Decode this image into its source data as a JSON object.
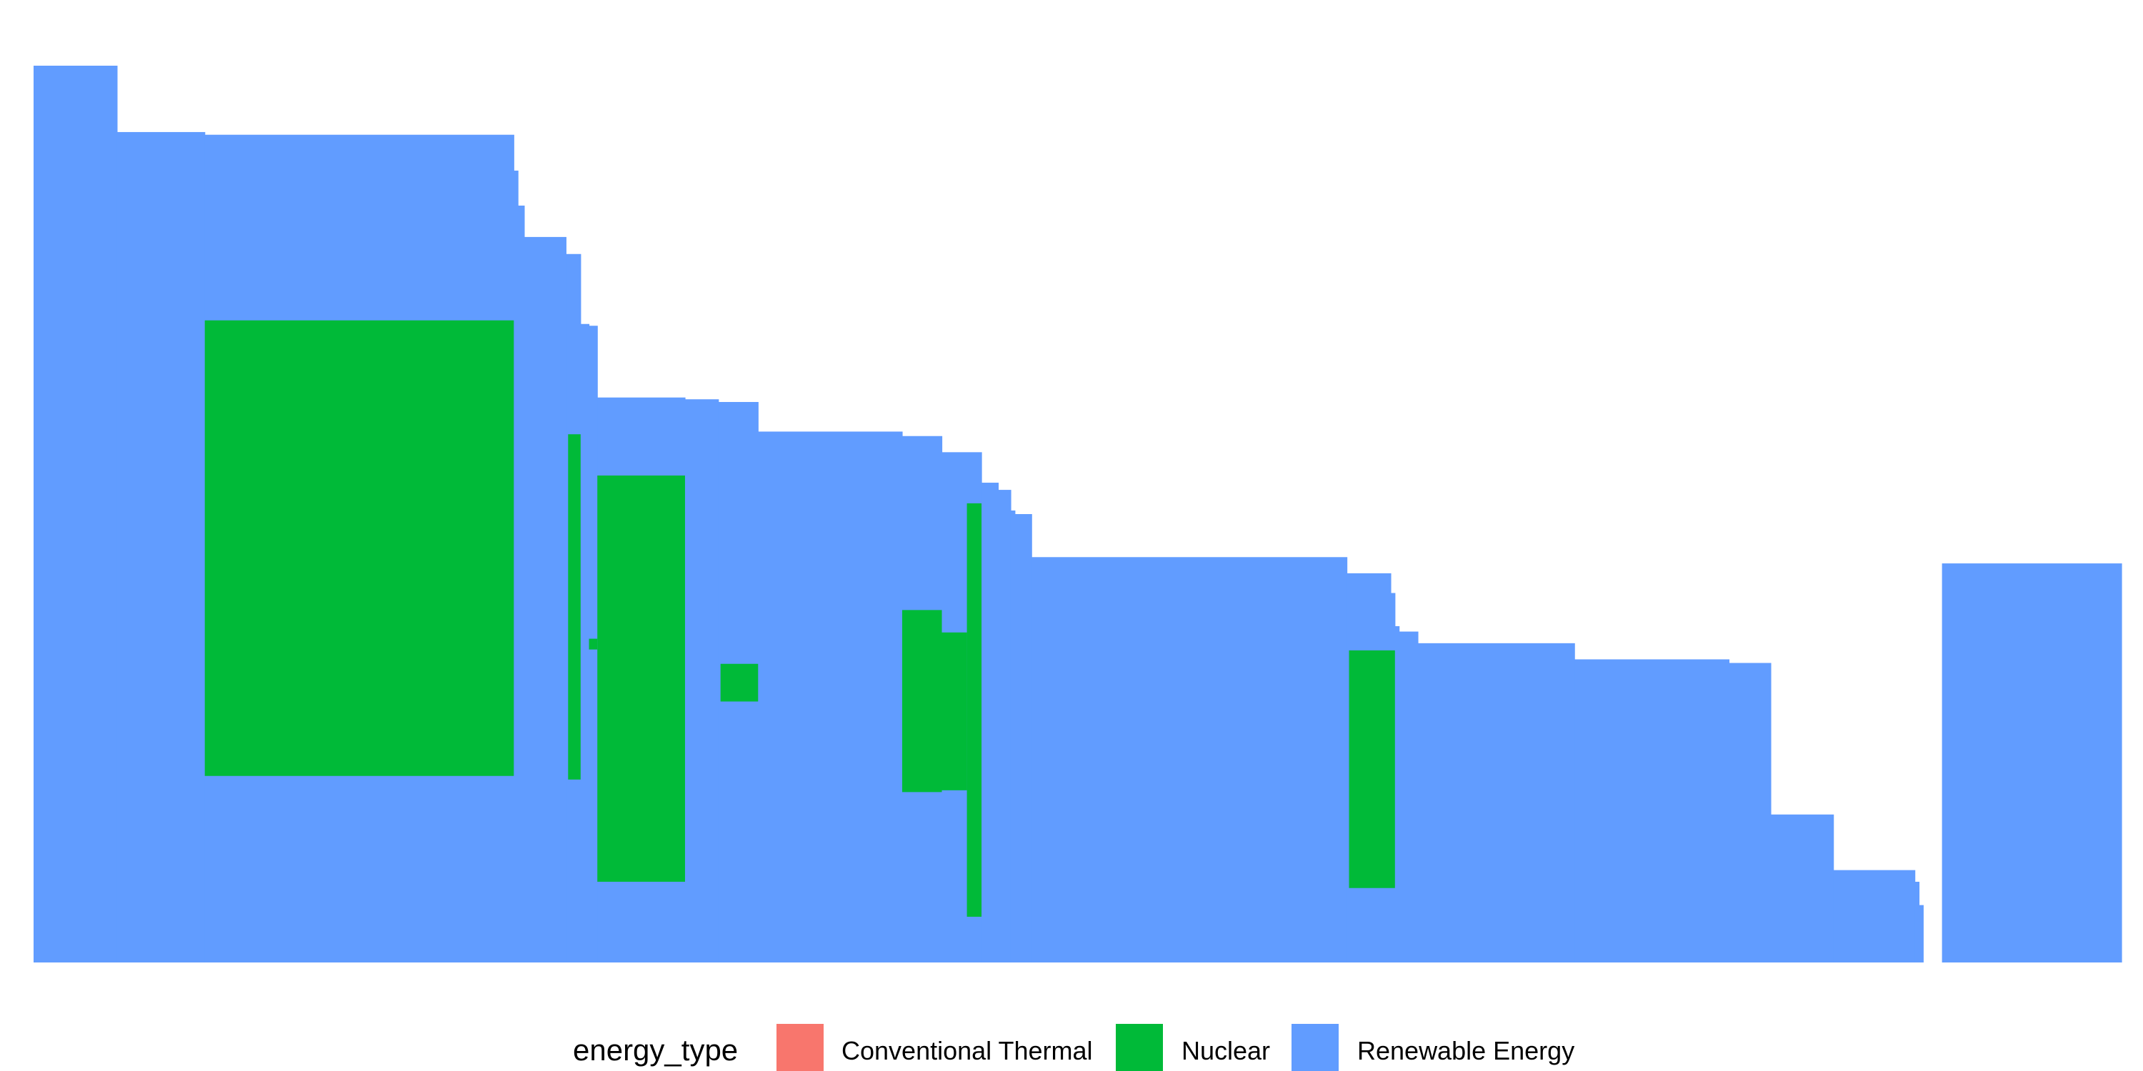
{
  "chart_data": {
    "type": "area",
    "title": "",
    "xlabel": "",
    "ylabel": "",
    "x_axis_visible": false,
    "y_axis_visible": false,
    "grid": false,
    "legend_placement": "bottom",
    "legend_title": "energy_type",
    "legend_entries": [
      {
        "key": "conventional_thermal",
        "label": "Conventional Thermal",
        "color": "#F8766D"
      },
      {
        "key": "nuclear",
        "label": "Nuclear",
        "color": "#00BA38"
      },
      {
        "key": "renewable",
        "label": "Renewable Energy",
        "color": "#619CFF"
      }
    ],
    "xlim": [
      0,
      100
    ],
    "ylim": [
      0,
      100
    ],
    "series": [
      {
        "name": "Renewable Energy",
        "color": "#619CFF",
        "segments": [
          {
            "x0": 0.0,
            "x1": 4.0,
            "top": 100.0
          },
          {
            "x0": 4.0,
            "x1": 8.2,
            "top": 92.6
          },
          {
            "x0": 8.2,
            "x1": 23.0,
            "top": 92.3
          },
          {
            "x0": 23.0,
            "x1": 23.2,
            "top": 88.3
          },
          {
            "x0": 23.2,
            "x1": 23.5,
            "top": 84.4
          },
          {
            "x0": 23.5,
            "x1": 25.5,
            "top": 80.9
          },
          {
            "x0": 25.5,
            "x1": 26.2,
            "top": 79.0
          },
          {
            "x0": 26.2,
            "x1": 26.6,
            "top": 71.2
          },
          {
            "x0": 26.6,
            "x1": 27.0,
            "top": 71.0
          },
          {
            "x0": 27.0,
            "x1": 31.2,
            "top": 63.0
          },
          {
            "x0": 31.2,
            "x1": 32.8,
            "top": 62.8
          },
          {
            "x0": 32.8,
            "x1": 34.7,
            "top": 62.5
          },
          {
            "x0": 34.7,
            "x1": 41.6,
            "top": 59.2
          },
          {
            "x0": 41.6,
            "x1": 43.5,
            "top": 58.7
          },
          {
            "x0": 43.5,
            "x1": 45.4,
            "top": 56.9
          },
          {
            "x0": 45.4,
            "x1": 46.2,
            "top": 53.5
          },
          {
            "x0": 46.2,
            "x1": 46.8,
            "top": 52.7
          },
          {
            "x0": 46.8,
            "x1": 47.0,
            "top": 50.4
          },
          {
            "x0": 47.0,
            "x1": 47.8,
            "top": 50.0
          },
          {
            "x0": 47.8,
            "x1": 62.9,
            "top": 45.2
          },
          {
            "x0": 62.9,
            "x1": 65.0,
            "top": 43.4
          },
          {
            "x0": 65.0,
            "x1": 65.2,
            "top": 41.2
          },
          {
            "x0": 65.2,
            "x1": 65.4,
            "top": 37.5
          },
          {
            "x0": 65.4,
            "x1": 66.3,
            "top": 36.9
          },
          {
            "x0": 66.3,
            "x1": 73.8,
            "top": 35.6
          },
          {
            "x0": 73.8,
            "x1": 81.2,
            "top": 33.8
          },
          {
            "x0": 81.2,
            "x1": 83.2,
            "top": 33.4
          },
          {
            "x0": 83.2,
            "x1": 86.2,
            "top": 16.5
          },
          {
            "x0": 86.2,
            "x1": 90.1,
            "top": 10.3
          },
          {
            "x0": 90.1,
            "x1": 90.3,
            "top": 9.0
          },
          {
            "x0": 90.3,
            "x1": 90.5,
            "top": 6.4
          },
          {
            "x0": 90.5,
            "x1": 91.4,
            "top": 0.0
          },
          {
            "x0": 91.4,
            "x1": 100.0,
            "top": 44.5
          }
        ]
      },
      {
        "name": "Nuclear",
        "color": "#00BA38",
        "blocks": [
          {
            "x0": 8.2,
            "x1": 23.0,
            "bottom": 20.8,
            "top": 71.6
          },
          {
            "x0": 25.6,
            "x1": 26.2,
            "bottom": 20.4,
            "top": 58.9
          },
          {
            "x0": 26.6,
            "x1": 27.0,
            "bottom": 34.9,
            "top": 36.1
          },
          {
            "x0": 27.0,
            "x1": 31.2,
            "bottom": 9.0,
            "top": 54.3
          },
          {
            "x0": 32.9,
            "x1": 34.7,
            "bottom": 29.1,
            "top": 33.3
          },
          {
            "x0": 41.6,
            "x1": 43.5,
            "bottom": 19.0,
            "top": 39.3
          },
          {
            "x0": 43.5,
            "x1": 44.7,
            "bottom": 19.2,
            "top": 36.8
          },
          {
            "x0": 44.7,
            "x1": 45.4,
            "bottom": 5.1,
            "top": 51.2
          },
          {
            "x0": 63.0,
            "x1": 65.2,
            "bottom": 8.3,
            "top": 34.8
          }
        ]
      },
      {
        "name": "Conventional Thermal",
        "color": "#F8766D",
        "blocks": []
      }
    ]
  }
}
